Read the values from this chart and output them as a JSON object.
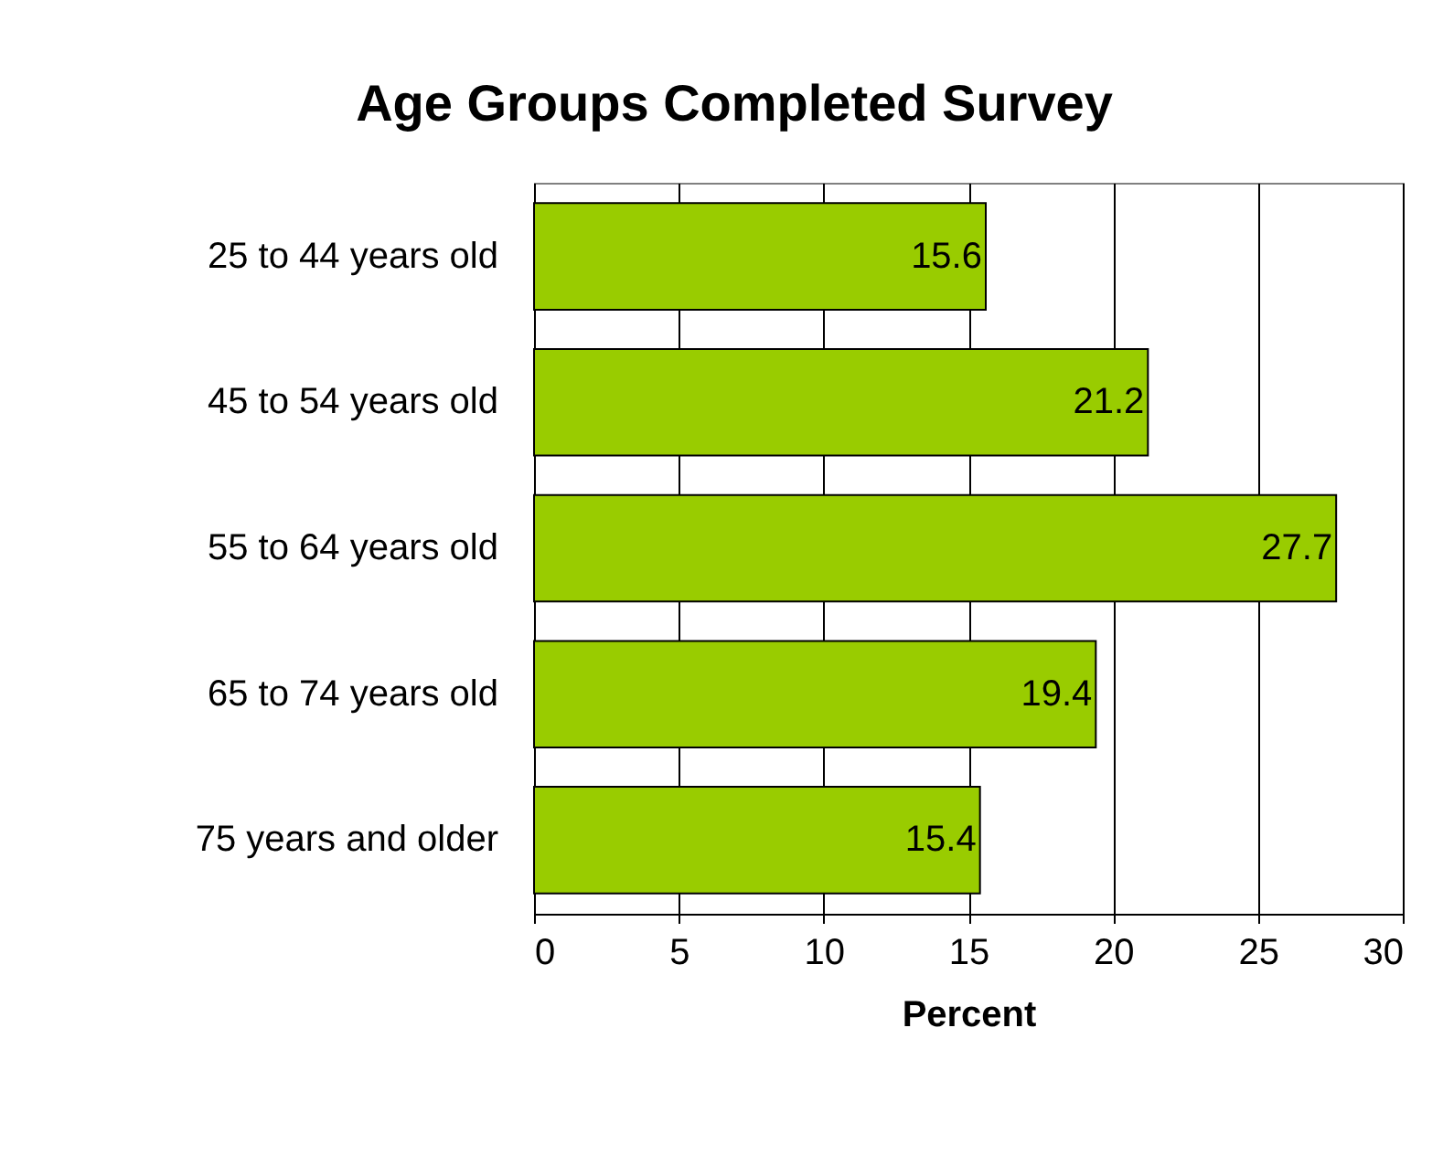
{
  "chart_data": {
    "type": "bar",
    "orientation": "horizontal",
    "title": "Age Groups Completed Survey",
    "xlabel": "Percent",
    "categories": [
      "25 to 44 years old",
      "45 to 54 years old",
      "55 to 64 years old",
      "65 to 74 years old",
      "75 years and older"
    ],
    "values": [
      15.6,
      21.2,
      27.7,
      19.4,
      15.4
    ],
    "color": "#99cc00",
    "xlim": [
      0,
      30
    ],
    "xticks": [
      0,
      5,
      10,
      15,
      20,
      25,
      30
    ],
    "grid": "x",
    "data_labels": true
  }
}
